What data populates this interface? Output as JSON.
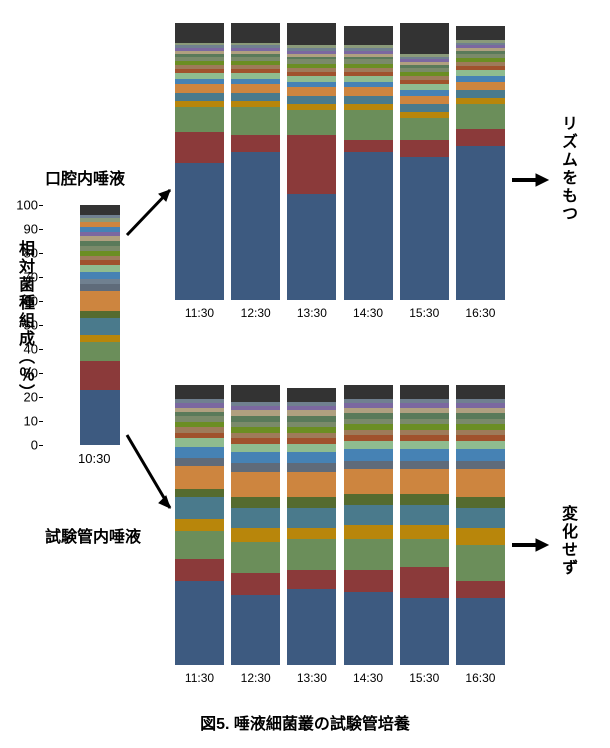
{
  "caption": "図5. 唾液細菌叢の試験管培養",
  "yaxis_label": "相対菌種組成（％）",
  "label_oral": "口腔内唾液",
  "label_tube": "試験管内唾液",
  "right_top": "リズムをもつ",
  "right_bottom": "変化せず",
  "ref_time": "10:30",
  "timepoints": [
    "11:30",
    "12:30",
    "13:30",
    "14:30",
    "15:30",
    "16:30"
  ],
  "y_ticks": [
    0,
    10,
    20,
    30,
    40,
    50,
    60,
    70,
    80,
    90,
    100
  ],
  "colors": {
    "c1": "#3d5a80",
    "c2": "#8b3a3a",
    "c3": "#6b8e5a",
    "c4": "#b8860b",
    "c5": "#4a7a8c",
    "c6": "#556b2f",
    "c7": "#cd853f",
    "c8": "#5f6b7a",
    "c9": "#708090",
    "c10": "#8fbc8f",
    "c11": "#a0522d",
    "c12": "#6b8e23",
    "c13": "#4682b4",
    "c14": "#9e7b5a",
    "c15": "#7a8a6a",
    "c16": "#333333",
    "c17": "#5a7a5a",
    "c18": "#b0a080",
    "c19": "#7b68a0",
    "c20": "#8a9a7a"
  },
  "ref_bar": [
    {
      "c": "c1",
      "v": 23
    },
    {
      "c": "c2",
      "v": 12
    },
    {
      "c": "c3",
      "v": 8
    },
    {
      "c": "c4",
      "v": 3
    },
    {
      "c": "c5",
      "v": 7
    },
    {
      "c": "c6",
      "v": 3
    },
    {
      "c": "c7",
      "v": 8
    },
    {
      "c": "c8",
      "v": 3
    },
    {
      "c": "c9",
      "v": 2
    },
    {
      "c": "c13",
      "v": 3
    },
    {
      "c": "c10",
      "v": 3
    },
    {
      "c": "c11",
      "v": 2
    },
    {
      "c": "c14",
      "v": 2
    },
    {
      "c": "c12",
      "v": 2
    },
    {
      "c": "c15",
      "v": 2
    },
    {
      "c": "c17",
      "v": 2
    },
    {
      "c": "c18",
      "v": 2
    },
    {
      "c": "c19",
      "v": 2
    },
    {
      "c": "c13",
      "v": 2
    },
    {
      "c": "c7",
      "v": 2
    },
    {
      "c": "c20",
      "v": 1.5
    },
    {
      "c": "c9",
      "v": 1.5
    },
    {
      "c": "c16",
      "v": 4
    }
  ],
  "top_bars": [
    [
      {
        "c": "c1",
        "v": 49
      },
      {
        "c": "c2",
        "v": 11
      },
      {
        "c": "c3",
        "v": 9
      },
      {
        "c": "c4",
        "v": 2
      },
      {
        "c": "c5",
        "v": 3
      },
      {
        "c": "c7",
        "v": 3
      },
      {
        "c": "c13",
        "v": 2
      },
      {
        "c": "c10",
        "v": 2
      },
      {
        "c": "c11",
        "v": 1.5
      },
      {
        "c": "c14",
        "v": 1.5
      },
      {
        "c": "c12",
        "v": 1.5
      },
      {
        "c": "c15",
        "v": 1.5
      },
      {
        "c": "c17",
        "v": 1
      },
      {
        "c": "c18",
        "v": 1
      },
      {
        "c": "c19",
        "v": 1
      },
      {
        "c": "c9",
        "v": 1
      },
      {
        "c": "c20",
        "v": 1
      },
      {
        "c": "c16",
        "v": 7
      }
    ],
    [
      {
        "c": "c1",
        "v": 53
      },
      {
        "c": "c2",
        "v": 6
      },
      {
        "c": "c3",
        "v": 10
      },
      {
        "c": "c4",
        "v": 2
      },
      {
        "c": "c5",
        "v": 3
      },
      {
        "c": "c7",
        "v": 3
      },
      {
        "c": "c13",
        "v": 2
      },
      {
        "c": "c10",
        "v": 2
      },
      {
        "c": "c11",
        "v": 1.5
      },
      {
        "c": "c14",
        "v": 1.5
      },
      {
        "c": "c12",
        "v": 1.5
      },
      {
        "c": "c15",
        "v": 1.5
      },
      {
        "c": "c17",
        "v": 1
      },
      {
        "c": "c18",
        "v": 1
      },
      {
        "c": "c19",
        "v": 1
      },
      {
        "c": "c9",
        "v": 1
      },
      {
        "c": "c20",
        "v": 1
      },
      {
        "c": "c16",
        "v": 7
      }
    ],
    [
      {
        "c": "c1",
        "v": 38
      },
      {
        "c": "c2",
        "v": 21
      },
      {
        "c": "c3",
        "v": 9
      },
      {
        "c": "c4",
        "v": 2
      },
      {
        "c": "c5",
        "v": 3
      },
      {
        "c": "c7",
        "v": 3
      },
      {
        "c": "c13",
        "v": 2
      },
      {
        "c": "c10",
        "v": 2
      },
      {
        "c": "c11",
        "v": 1.5
      },
      {
        "c": "c14",
        "v": 1.5
      },
      {
        "c": "c12",
        "v": 1.5
      },
      {
        "c": "c15",
        "v": 1.5
      },
      {
        "c": "c17",
        "v": 1
      },
      {
        "c": "c18",
        "v": 1
      },
      {
        "c": "c19",
        "v": 1
      },
      {
        "c": "c9",
        "v": 1
      },
      {
        "c": "c20",
        "v": 1
      },
      {
        "c": "c16",
        "v": 8
      }
    ],
    [
      {
        "c": "c1",
        "v": 53
      },
      {
        "c": "c2",
        "v": 4
      },
      {
        "c": "c3",
        "v": 11
      },
      {
        "c": "c4",
        "v": 2
      },
      {
        "c": "c5",
        "v": 3
      },
      {
        "c": "c7",
        "v": 3
      },
      {
        "c": "c13",
        "v": 2
      },
      {
        "c": "c10",
        "v": 2
      },
      {
        "c": "c11",
        "v": 1.5
      },
      {
        "c": "c14",
        "v": 1.5
      },
      {
        "c": "c12",
        "v": 1.5
      },
      {
        "c": "c15",
        "v": 1.5
      },
      {
        "c": "c17",
        "v": 1
      },
      {
        "c": "c18",
        "v": 1
      },
      {
        "c": "c19",
        "v": 1
      },
      {
        "c": "c9",
        "v": 1
      },
      {
        "c": "c20",
        "v": 1
      },
      {
        "c": "c16",
        "v": 7
      }
    ],
    [
      {
        "c": "c1",
        "v": 51
      },
      {
        "c": "c2",
        "v": 6
      },
      {
        "c": "c3",
        "v": 8
      },
      {
        "c": "c4",
        "v": 2
      },
      {
        "c": "c5",
        "v": 3
      },
      {
        "c": "c7",
        "v": 3
      },
      {
        "c": "c13",
        "v": 2
      },
      {
        "c": "c10",
        "v": 2
      },
      {
        "c": "c11",
        "v": 1.5
      },
      {
        "c": "c14",
        "v": 1.5
      },
      {
        "c": "c12",
        "v": 1.5
      },
      {
        "c": "c15",
        "v": 1.5
      },
      {
        "c": "c17",
        "v": 1
      },
      {
        "c": "c18",
        "v": 1
      },
      {
        "c": "c19",
        "v": 1
      },
      {
        "c": "c9",
        "v": 1
      },
      {
        "c": "c20",
        "v": 1
      },
      {
        "c": "c16",
        "v": 11
      }
    ],
    [
      {
        "c": "c1",
        "v": 55
      },
      {
        "c": "c2",
        "v": 6
      },
      {
        "c": "c3",
        "v": 9
      },
      {
        "c": "c4",
        "v": 2
      },
      {
        "c": "c5",
        "v": 3
      },
      {
        "c": "c7",
        "v": 3
      },
      {
        "c": "c13",
        "v": 2
      },
      {
        "c": "c10",
        "v": 2
      },
      {
        "c": "c11",
        "v": 1.5
      },
      {
        "c": "c14",
        "v": 1.5
      },
      {
        "c": "c12",
        "v": 1.5
      },
      {
        "c": "c15",
        "v": 1.5
      },
      {
        "c": "c17",
        "v": 1
      },
      {
        "c": "c18",
        "v": 1
      },
      {
        "c": "c19",
        "v": 1
      },
      {
        "c": "c9",
        "v": 1
      },
      {
        "c": "c20",
        "v": 1
      },
      {
        "c": "c16",
        "v": 5
      }
    ]
  ],
  "bottom_bars": [
    [
      {
        "c": "c1",
        "v": 30
      },
      {
        "c": "c2",
        "v": 8
      },
      {
        "c": "c3",
        "v": 10
      },
      {
        "c": "c4",
        "v": 4
      },
      {
        "c": "c5",
        "v": 8
      },
      {
        "c": "c6",
        "v": 3
      },
      {
        "c": "c7",
        "v": 8
      },
      {
        "c": "c8",
        "v": 3
      },
      {
        "c": "c13",
        "v": 4
      },
      {
        "c": "c10",
        "v": 3
      },
      {
        "c": "c11",
        "v": 2
      },
      {
        "c": "c14",
        "v": 2
      },
      {
        "c": "c12",
        "v": 2
      },
      {
        "c": "c15",
        "v": 2
      },
      {
        "c": "c17",
        "v": 1.5
      },
      {
        "c": "c18",
        "v": 1.5
      },
      {
        "c": "c19",
        "v": 1.5
      },
      {
        "c": "c9",
        "v": 1.5
      },
      {
        "c": "c16",
        "v": 5
      }
    ],
    [
      {
        "c": "c1",
        "v": 25
      },
      {
        "c": "c2",
        "v": 8
      },
      {
        "c": "c3",
        "v": 11
      },
      {
        "c": "c4",
        "v": 5
      },
      {
        "c": "c5",
        "v": 7
      },
      {
        "c": "c6",
        "v": 4
      },
      {
        "c": "c7",
        "v": 9
      },
      {
        "c": "c8",
        "v": 3
      },
      {
        "c": "c13",
        "v": 4
      },
      {
        "c": "c10",
        "v": 3
      },
      {
        "c": "c11",
        "v": 2
      },
      {
        "c": "c14",
        "v": 2
      },
      {
        "c": "c12",
        "v": 2
      },
      {
        "c": "c15",
        "v": 2
      },
      {
        "c": "c17",
        "v": 2
      },
      {
        "c": "c18",
        "v": 2
      },
      {
        "c": "c19",
        "v": 1.5
      },
      {
        "c": "c9",
        "v": 1.5
      },
      {
        "c": "c16",
        "v": 6
      }
    ],
    [
      {
        "c": "c1",
        "v": 27
      },
      {
        "c": "c2",
        "v": 7
      },
      {
        "c": "c3",
        "v": 11
      },
      {
        "c": "c4",
        "v": 4
      },
      {
        "c": "c5",
        "v": 7
      },
      {
        "c": "c6",
        "v": 4
      },
      {
        "c": "c7",
        "v": 9
      },
      {
        "c": "c8",
        "v": 3
      },
      {
        "c": "c13",
        "v": 4
      },
      {
        "c": "c10",
        "v": 3
      },
      {
        "c": "c11",
        "v": 2
      },
      {
        "c": "c14",
        "v": 2
      },
      {
        "c": "c12",
        "v": 2
      },
      {
        "c": "c15",
        "v": 2
      },
      {
        "c": "c17",
        "v": 2
      },
      {
        "c": "c18",
        "v": 2
      },
      {
        "c": "c19",
        "v": 1.5
      },
      {
        "c": "c9",
        "v": 1.5
      },
      {
        "c": "c16",
        "v": 5
      }
    ],
    [
      {
        "c": "c1",
        "v": 26
      },
      {
        "c": "c2",
        "v": 8
      },
      {
        "c": "c3",
        "v": 11
      },
      {
        "c": "c4",
        "v": 5
      },
      {
        "c": "c5",
        "v": 7
      },
      {
        "c": "c6",
        "v": 4
      },
      {
        "c": "c7",
        "v": 9
      },
      {
        "c": "c8",
        "v": 3
      },
      {
        "c": "c13",
        "v": 4
      },
      {
        "c": "c10",
        "v": 3
      },
      {
        "c": "c11",
        "v": 2
      },
      {
        "c": "c14",
        "v": 2
      },
      {
        "c": "c12",
        "v": 2
      },
      {
        "c": "c15",
        "v": 2
      },
      {
        "c": "c17",
        "v": 2
      },
      {
        "c": "c18",
        "v": 2
      },
      {
        "c": "c19",
        "v": 1.5
      },
      {
        "c": "c9",
        "v": 1.5
      },
      {
        "c": "c16",
        "v": 5
      }
    ],
    [
      {
        "c": "c1",
        "v": 24
      },
      {
        "c": "c2",
        "v": 11
      },
      {
        "c": "c3",
        "v": 10
      },
      {
        "c": "c4",
        "v": 5
      },
      {
        "c": "c5",
        "v": 7
      },
      {
        "c": "c6",
        "v": 4
      },
      {
        "c": "c7",
        "v": 9
      },
      {
        "c": "c8",
        "v": 3
      },
      {
        "c": "c13",
        "v": 4
      },
      {
        "c": "c10",
        "v": 3
      },
      {
        "c": "c11",
        "v": 2
      },
      {
        "c": "c14",
        "v": 2
      },
      {
        "c": "c12",
        "v": 2
      },
      {
        "c": "c15",
        "v": 2
      },
      {
        "c": "c17",
        "v": 2
      },
      {
        "c": "c18",
        "v": 2
      },
      {
        "c": "c19",
        "v": 1.5
      },
      {
        "c": "c9",
        "v": 1.5
      },
      {
        "c": "c16",
        "v": 5
      }
    ],
    [
      {
        "c": "c1",
        "v": 24
      },
      {
        "c": "c2",
        "v": 6
      },
      {
        "c": "c3",
        "v": 13
      },
      {
        "c": "c4",
        "v": 6
      },
      {
        "c": "c5",
        "v": 7
      },
      {
        "c": "c6",
        "v": 4
      },
      {
        "c": "c7",
        "v": 10
      },
      {
        "c": "c8",
        "v": 3
      },
      {
        "c": "c13",
        "v": 4
      },
      {
        "c": "c10",
        "v": 3
      },
      {
        "c": "c11",
        "v": 2
      },
      {
        "c": "c14",
        "v": 2
      },
      {
        "c": "c12",
        "v": 2
      },
      {
        "c": "c15",
        "v": 2
      },
      {
        "c": "c17",
        "v": 2
      },
      {
        "c": "c18",
        "v": 2
      },
      {
        "c": "c19",
        "v": 1.5
      },
      {
        "c": "c9",
        "v": 1.5
      },
      {
        "c": "c16",
        "v": 5
      }
    ]
  ]
}
